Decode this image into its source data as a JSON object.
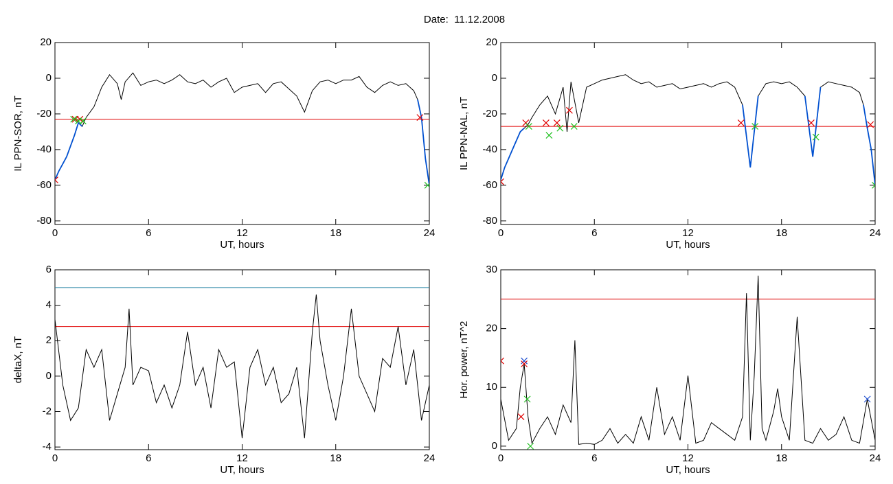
{
  "title": "Date:  11.12.2008",
  "chart_data": [
    {
      "type": "line",
      "xlabel": "UT, hours",
      "ylabel": "IL PPN-SOR, nT",
      "xlim": [
        0,
        24
      ],
      "xticks": [
        0,
        6,
        12,
        18,
        24
      ],
      "ylim": [
        -82,
        20
      ],
      "yticks": [
        -80,
        -60,
        -40,
        -20,
        0,
        20
      ],
      "series": [
        {
          "color": "#000000",
          "x": [
            0,
            0.25,
            0.5,
            0.75,
            1,
            1.25,
            1.5,
            1.75,
            2,
            2.5,
            3,
            3.5,
            4,
            4.25,
            4.5,
            5,
            5.5,
            6,
            6.5,
            7,
            7.5,
            8,
            8.5,
            9,
            9.5,
            10,
            10.5,
            11,
            11.5,
            12,
            12.5,
            13,
            13.5,
            14,
            14.5,
            15,
            15.5,
            16,
            16.5,
            17,
            17.5,
            18,
            18.5,
            19,
            19.5,
            20,
            20.5,
            21,
            21.5,
            22,
            22.5,
            23,
            23.25,
            23.5,
            23.75,
            24
          ],
          "values": [
            -57,
            -52,
            -48,
            -44,
            -38,
            -32,
            -25,
            -27,
            -22,
            -16,
            -5,
            2,
            -3,
            -12,
            -2,
            3,
            -4,
            -2,
            -1,
            -3,
            -1,
            2,
            -2,
            -3,
            -1,
            -5,
            -2,
            0,
            -8,
            -5,
            -4,
            -3,
            -8,
            -3,
            -2,
            -6,
            -10,
            -19,
            -7,
            -2,
            -1,
            -3,
            -1,
            -1,
            1,
            -5,
            -8,
            -4,
            -2,
            -4,
            -3,
            -7,
            -12,
            -22,
            -45,
            -60
          ]
        },
        {
          "color": "#0050d0",
          "x": [
            0,
            0.25,
            0.5,
            0.75,
            1,
            1.25,
            1.5,
            1.75,
            2,
            23.25,
            23.5,
            23.75,
            24
          ],
          "values": [
            -57,
            -52,
            -48,
            -44,
            -38,
            -32,
            -25,
            -27,
            null,
            -12,
            -22,
            -45,
            -60
          ]
        }
      ],
      "hlines": [
        {
          "value": -23,
          "color": "#e00000"
        }
      ],
      "markers": [
        {
          "color": "#e00000",
          "x": [
            0,
            1.3,
            1.6,
            23.4
          ],
          "values": [
            -57,
            -23,
            -23,
            -22
          ]
        },
        {
          "color": "#20c020",
          "x": [
            1.2,
            1.5,
            1.8,
            23.9
          ],
          "values": [
            -23,
            -24,
            -24,
            -60
          ]
        }
      ]
    },
    {
      "type": "line",
      "xlabel": "UT, hours",
      "ylabel": "IL PPN-NAL, nT",
      "xlim": [
        0,
        24
      ],
      "xticks": [
        0,
        6,
        12,
        18,
        24
      ],
      "ylim": [
        -82,
        20
      ],
      "yticks": [
        -80,
        -60,
        -40,
        -20,
        0,
        20
      ],
      "series": [
        {
          "color": "#000000",
          "x": [
            0,
            0.25,
            0.5,
            0.75,
            1,
            1.25,
            1.5,
            1.75,
            2,
            2.5,
            3,
            3.5,
            4,
            4.25,
            4.5,
            5,
            5.5,
            6,
            6.5,
            7,
            7.5,
            8,
            8.5,
            9,
            9.5,
            10,
            10.5,
            11,
            11.5,
            12,
            12.5,
            13,
            13.5,
            14,
            14.5,
            15,
            15.5,
            16,
            16.5,
            17,
            17.5,
            18,
            18.5,
            19,
            19.5,
            20,
            20.5,
            21,
            21.5,
            22,
            22.5,
            23,
            23.25,
            23.5,
            23.75,
            24
          ],
          "values": [
            -57,
            -50,
            -45,
            -40,
            -35,
            -30,
            -28,
            -26,
            -22,
            -15,
            -10,
            -20,
            -5,
            -30,
            -2,
            -25,
            -5,
            -3,
            -1,
            0,
            1,
            2,
            -1,
            -3,
            -2,
            -5,
            -4,
            -3,
            -6,
            -5,
            -4,
            -3,
            -5,
            -3,
            -2,
            -5,
            -15,
            -50,
            -10,
            -3,
            -2,
            -3,
            -2,
            -5,
            -10,
            -44,
            -5,
            -2,
            -3,
            -4,
            -5,
            -8,
            -15,
            -28,
            -40,
            -60
          ]
        },
        {
          "color": "#0050d0",
          "x": [
            0,
            0.25,
            0.5,
            0.75,
            1,
            1.25,
            1.5,
            2,
            15.5,
            16,
            16.5,
            17,
            19.5,
            20,
            20.5,
            21,
            23.25,
            23.5,
            23.75,
            24
          ],
          "values": [
            -57,
            -50,
            -45,
            -40,
            -35,
            -30,
            -28,
            null,
            -15,
            -50,
            -10,
            null,
            -10,
            -44,
            -5,
            null,
            -15,
            -28,
            -40,
            -60
          ]
        }
      ],
      "hlines": [
        {
          "value": -27,
          "color": "#e00000"
        }
      ],
      "markers": [
        {
          "color": "#e00000",
          "x": [
            0,
            1.6,
            2.9,
            3.6,
            4.4,
            15.4,
            19.9,
            23.7
          ],
          "values": [
            -58,
            -25,
            -25,
            -25,
            -18,
            -25,
            -25,
            -26
          ]
        },
        {
          "color": "#20c020",
          "x": [
            1.8,
            3.1,
            3.8,
            4.7,
            16.3,
            20.2,
            24
          ],
          "values": [
            -27,
            -32,
            -28,
            -27,
            -27,
            -33,
            -60
          ]
        }
      ]
    },
    {
      "type": "line",
      "xlabel": "UT, hours",
      "ylabel": "deltaX, nT",
      "xlim": [
        0,
        24
      ],
      "xticks": [
        0,
        6,
        12,
        18,
        24
      ],
      "ylim": [
        -4.15,
        6
      ],
      "yticks": [
        -4,
        -2,
        0,
        2,
        4,
        6
      ],
      "series": [
        {
          "color": "#000000",
          "x": [
            0,
            0.5,
            1,
            1.5,
            2,
            2.5,
            3,
            3.5,
            4,
            4.5,
            4.75,
            5,
            5.5,
            6,
            6.5,
            7,
            7.5,
            8,
            8.5,
            9,
            9.5,
            10,
            10.5,
            11,
            11.5,
            12,
            12.5,
            13,
            13.5,
            14,
            14.5,
            15,
            15.5,
            16,
            16.5,
            16.75,
            17,
            17.5,
            18,
            18.5,
            19,
            19.5,
            20,
            20.5,
            21,
            21.5,
            22,
            22.5,
            23,
            23.5,
            24
          ],
          "values": [
            3.2,
            -0.5,
            -2.5,
            -1.8,
            1.5,
            0.5,
            1.5,
            -2.5,
            -1,
            0.5,
            3.8,
            -0.5,
            0.5,
            0.3,
            -1.5,
            -0.5,
            -1.8,
            -0.5,
            2.5,
            -0.5,
            0.5,
            -1.8,
            1.5,
            0.5,
            0.8,
            -3.5,
            0.5,
            1.5,
            -0.5,
            0.5,
            -1.5,
            -1,
            0.5,
            -3.5,
            2.5,
            4.6,
            2,
            -0.5,
            -2.5,
            0,
            3.8,
            0,
            -1,
            -2,
            1,
            0.5,
            2.8,
            -0.5,
            1.5,
            -2.5,
            -0.5
          ]
        }
      ],
      "hlines": [
        {
          "value": 5,
          "color": "#2080a0"
        },
        {
          "value": 2.8,
          "color": "#e00000"
        }
      ],
      "markers": []
    },
    {
      "type": "line",
      "xlabel": "UT, hours",
      "ylabel": "Hor. power, nT^2",
      "xlim": [
        0,
        24
      ],
      "xticks": [
        0,
        6,
        12,
        18,
        24
      ],
      "ylim": [
        -0.6,
        30
      ],
      "yticks": [
        0,
        10,
        20,
        30
      ],
      "series": [
        {
          "color": "#000000",
          "x": [
            0,
            0.5,
            1,
            1.25,
            1.5,
            1.75,
            2,
            2.5,
            3,
            3.5,
            4,
            4.5,
            4.75,
            5,
            5.5,
            6,
            6.5,
            7,
            7.5,
            8,
            8.5,
            9,
            9.5,
            10,
            10.5,
            11,
            11.5,
            12,
            12.5,
            13,
            13.5,
            14,
            14.5,
            15,
            15.5,
            15.75,
            16,
            16.25,
            16.5,
            16.75,
            17,
            17.5,
            17.75,
            18,
            18.5,
            19,
            19.5,
            20,
            20.5,
            21,
            21.5,
            22,
            22.5,
            23,
            23.5,
            24
          ],
          "values": [
            8,
            1,
            3,
            10,
            14,
            5,
            0.5,
            3,
            5,
            2,
            7,
            4,
            18,
            0.3,
            0.5,
            0.3,
            1,
            3,
            0.5,
            2,
            0.5,
            5,
            1,
            10,
            2,
            5,
            1,
            12,
            0.5,
            1,
            4,
            3,
            2,
            1,
            5,
            26,
            1,
            12,
            29,
            3,
            1,
            6,
            9.8,
            5,
            1,
            22,
            1,
            0.5,
            3,
            1,
            2,
            5,
            1,
            0.5,
            8,
            1
          ]
        }
      ],
      "hlines": [
        {
          "value": 25,
          "color": "#e00000"
        }
      ],
      "markers": [
        {
          "color": "#2050d0",
          "x": [
            1.5,
            23.5
          ],
          "values": [
            14.5,
            8
          ]
        },
        {
          "color": "#e00000",
          "x": [
            0,
            1.3,
            1.5
          ],
          "values": [
            14.5,
            5,
            14
          ]
        },
        {
          "color": "#20c020",
          "x": [
            1.7,
            1.9
          ],
          "values": [
            8,
            0
          ]
        }
      ]
    }
  ]
}
